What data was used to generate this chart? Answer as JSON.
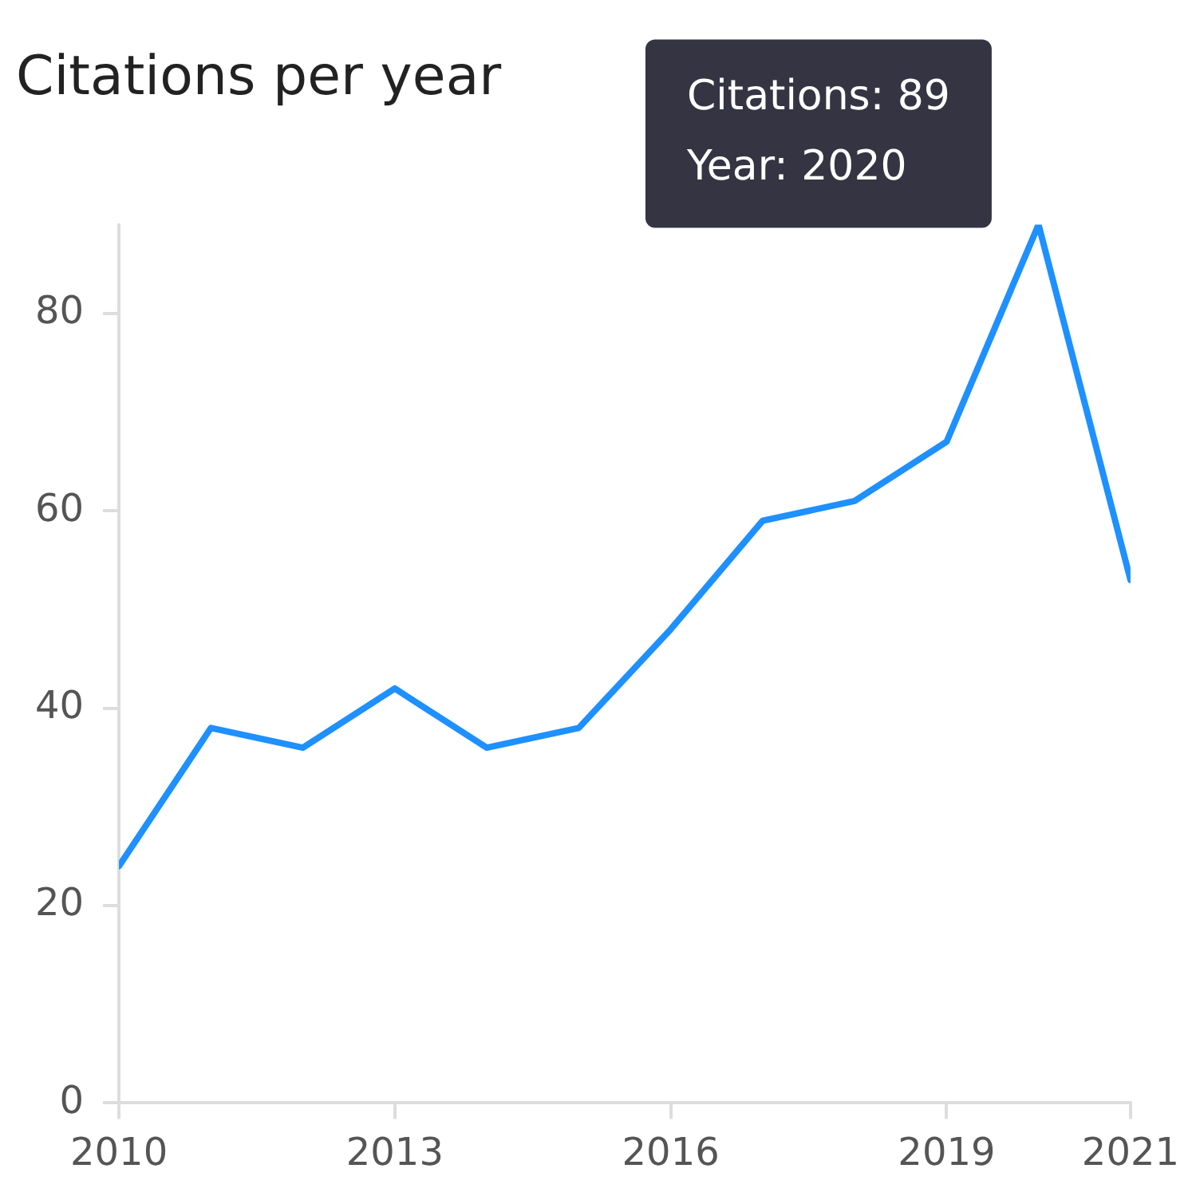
{
  "chart_data": {
    "type": "line",
    "title": "Citations per year",
    "x": [
      2010,
      2011,
      2012,
      2013,
      2014,
      2015,
      2016,
      2017,
      2018,
      2019,
      2020,
      2021
    ],
    "series": [
      {
        "color": "#1e90ff",
        "values": [
          24,
          38,
          36,
          42,
          36,
          38,
          48,
          59,
          61,
          67,
          89,
          53
        ]
      }
    ],
    "xlim": [
      2010,
      2021
    ],
    "xticks": [
      2010,
      2013,
      2016,
      2019,
      2021
    ],
    "ylim": [
      0,
      89
    ],
    "yticks": [
      0,
      20,
      40,
      60,
      80
    ],
    "grid": false,
    "legend": false,
    "marker": "none",
    "line_style": "solid",
    "annotations": [
      "Citations: 89",
      "Year: 2020"
    ]
  }
}
